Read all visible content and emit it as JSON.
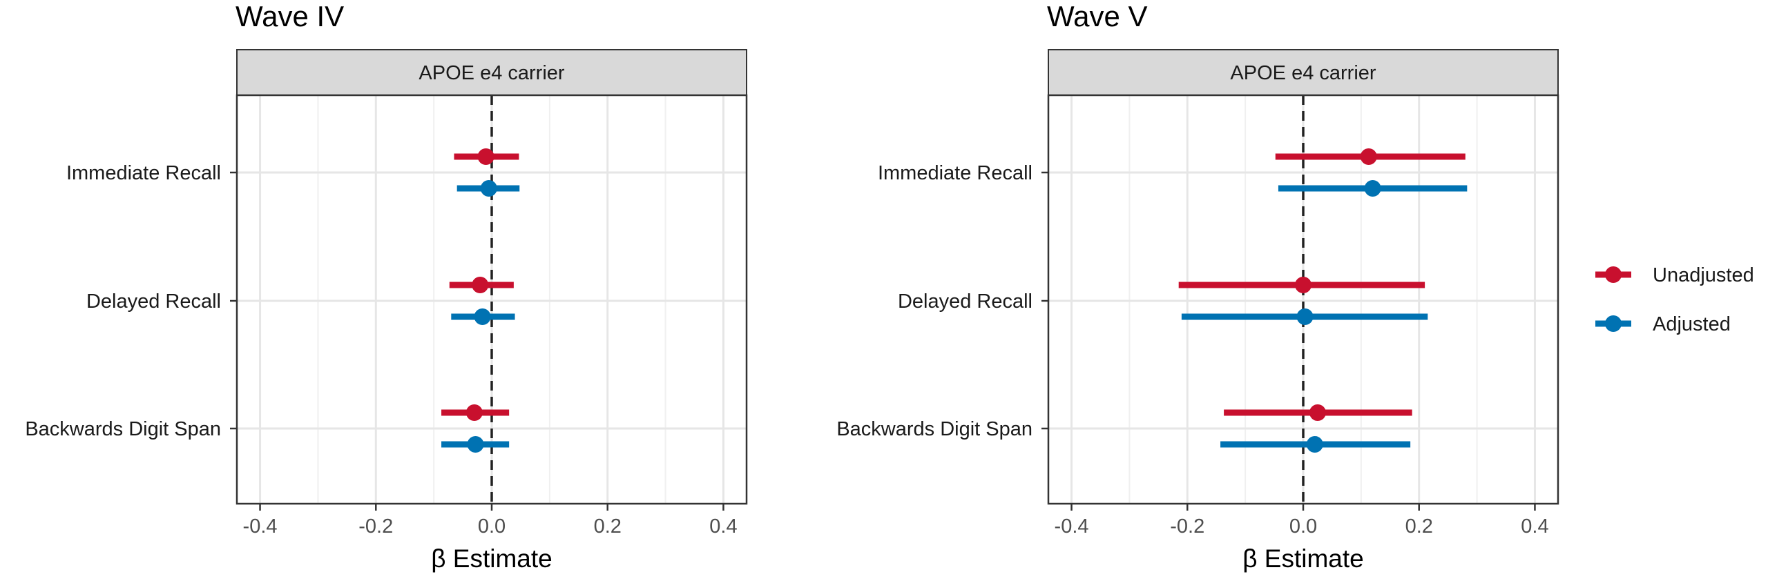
{
  "legend": {
    "position": "right",
    "items": [
      {
        "label": "Unadjusted",
        "color": "#C8102E"
      },
      {
        "label": "Adjusted",
        "color": "#0072B2"
      }
    ]
  },
  "chart_data": [
    {
      "type": "forest",
      "title": "Wave IV",
      "strip_label": "APOE e4 carrier",
      "xlabel": "β Estimate",
      "xlim": [
        -0.44,
        0.44
      ],
      "x_ticks": [
        -0.4,
        -0.2,
        0.0,
        0.2,
        0.4
      ],
      "x_tick_labels": [
        "-0.4",
        "-0.2",
        "0.0",
        "0.2",
        "0.4"
      ],
      "reference_line": 0,
      "grid": true,
      "categories": [
        "Immediate Recall",
        "Delayed Recall",
        "Backwards Digit Span"
      ],
      "series": [
        {
          "name": "Unadjusted",
          "color": "#C8102E",
          "estimates": [
            -0.01,
            -0.02,
            -0.03
          ],
          "lower": [
            -0.065,
            -0.073,
            -0.087
          ],
          "upper": [
            0.047,
            0.038,
            0.03
          ]
        },
        {
          "name": "Adjusted",
          "color": "#0072B2",
          "estimates": [
            -0.005,
            -0.016,
            -0.028
          ],
          "lower": [
            -0.06,
            -0.07,
            -0.087
          ],
          "upper": [
            0.048,
            0.04,
            0.03
          ]
        }
      ]
    },
    {
      "type": "forest",
      "title": "Wave V",
      "strip_label": "APOE e4 carrier",
      "xlabel": "β Estimate",
      "xlim": [
        -0.44,
        0.44
      ],
      "x_ticks": [
        -0.4,
        -0.2,
        0.0,
        0.2,
        0.4
      ],
      "x_tick_labels": [
        "-0.4",
        "-0.2",
        "0.0",
        "0.2",
        "0.4"
      ],
      "reference_line": 0,
      "grid": true,
      "categories": [
        "Immediate Recall",
        "Delayed Recall",
        "Backwards Digit Span"
      ],
      "series": [
        {
          "name": "Unadjusted",
          "color": "#C8102E",
          "estimates": [
            0.113,
            0.0,
            0.025
          ],
          "lower": [
            -0.048,
            -0.215,
            -0.137
          ],
          "upper": [
            0.28,
            0.21,
            0.188
          ]
        },
        {
          "name": "Adjusted",
          "color": "#0072B2",
          "estimates": [
            0.12,
            0.003,
            0.02
          ],
          "lower": [
            -0.043,
            -0.21,
            -0.143
          ],
          "upper": [
            0.283,
            0.215,
            0.185
          ]
        }
      ]
    }
  ]
}
